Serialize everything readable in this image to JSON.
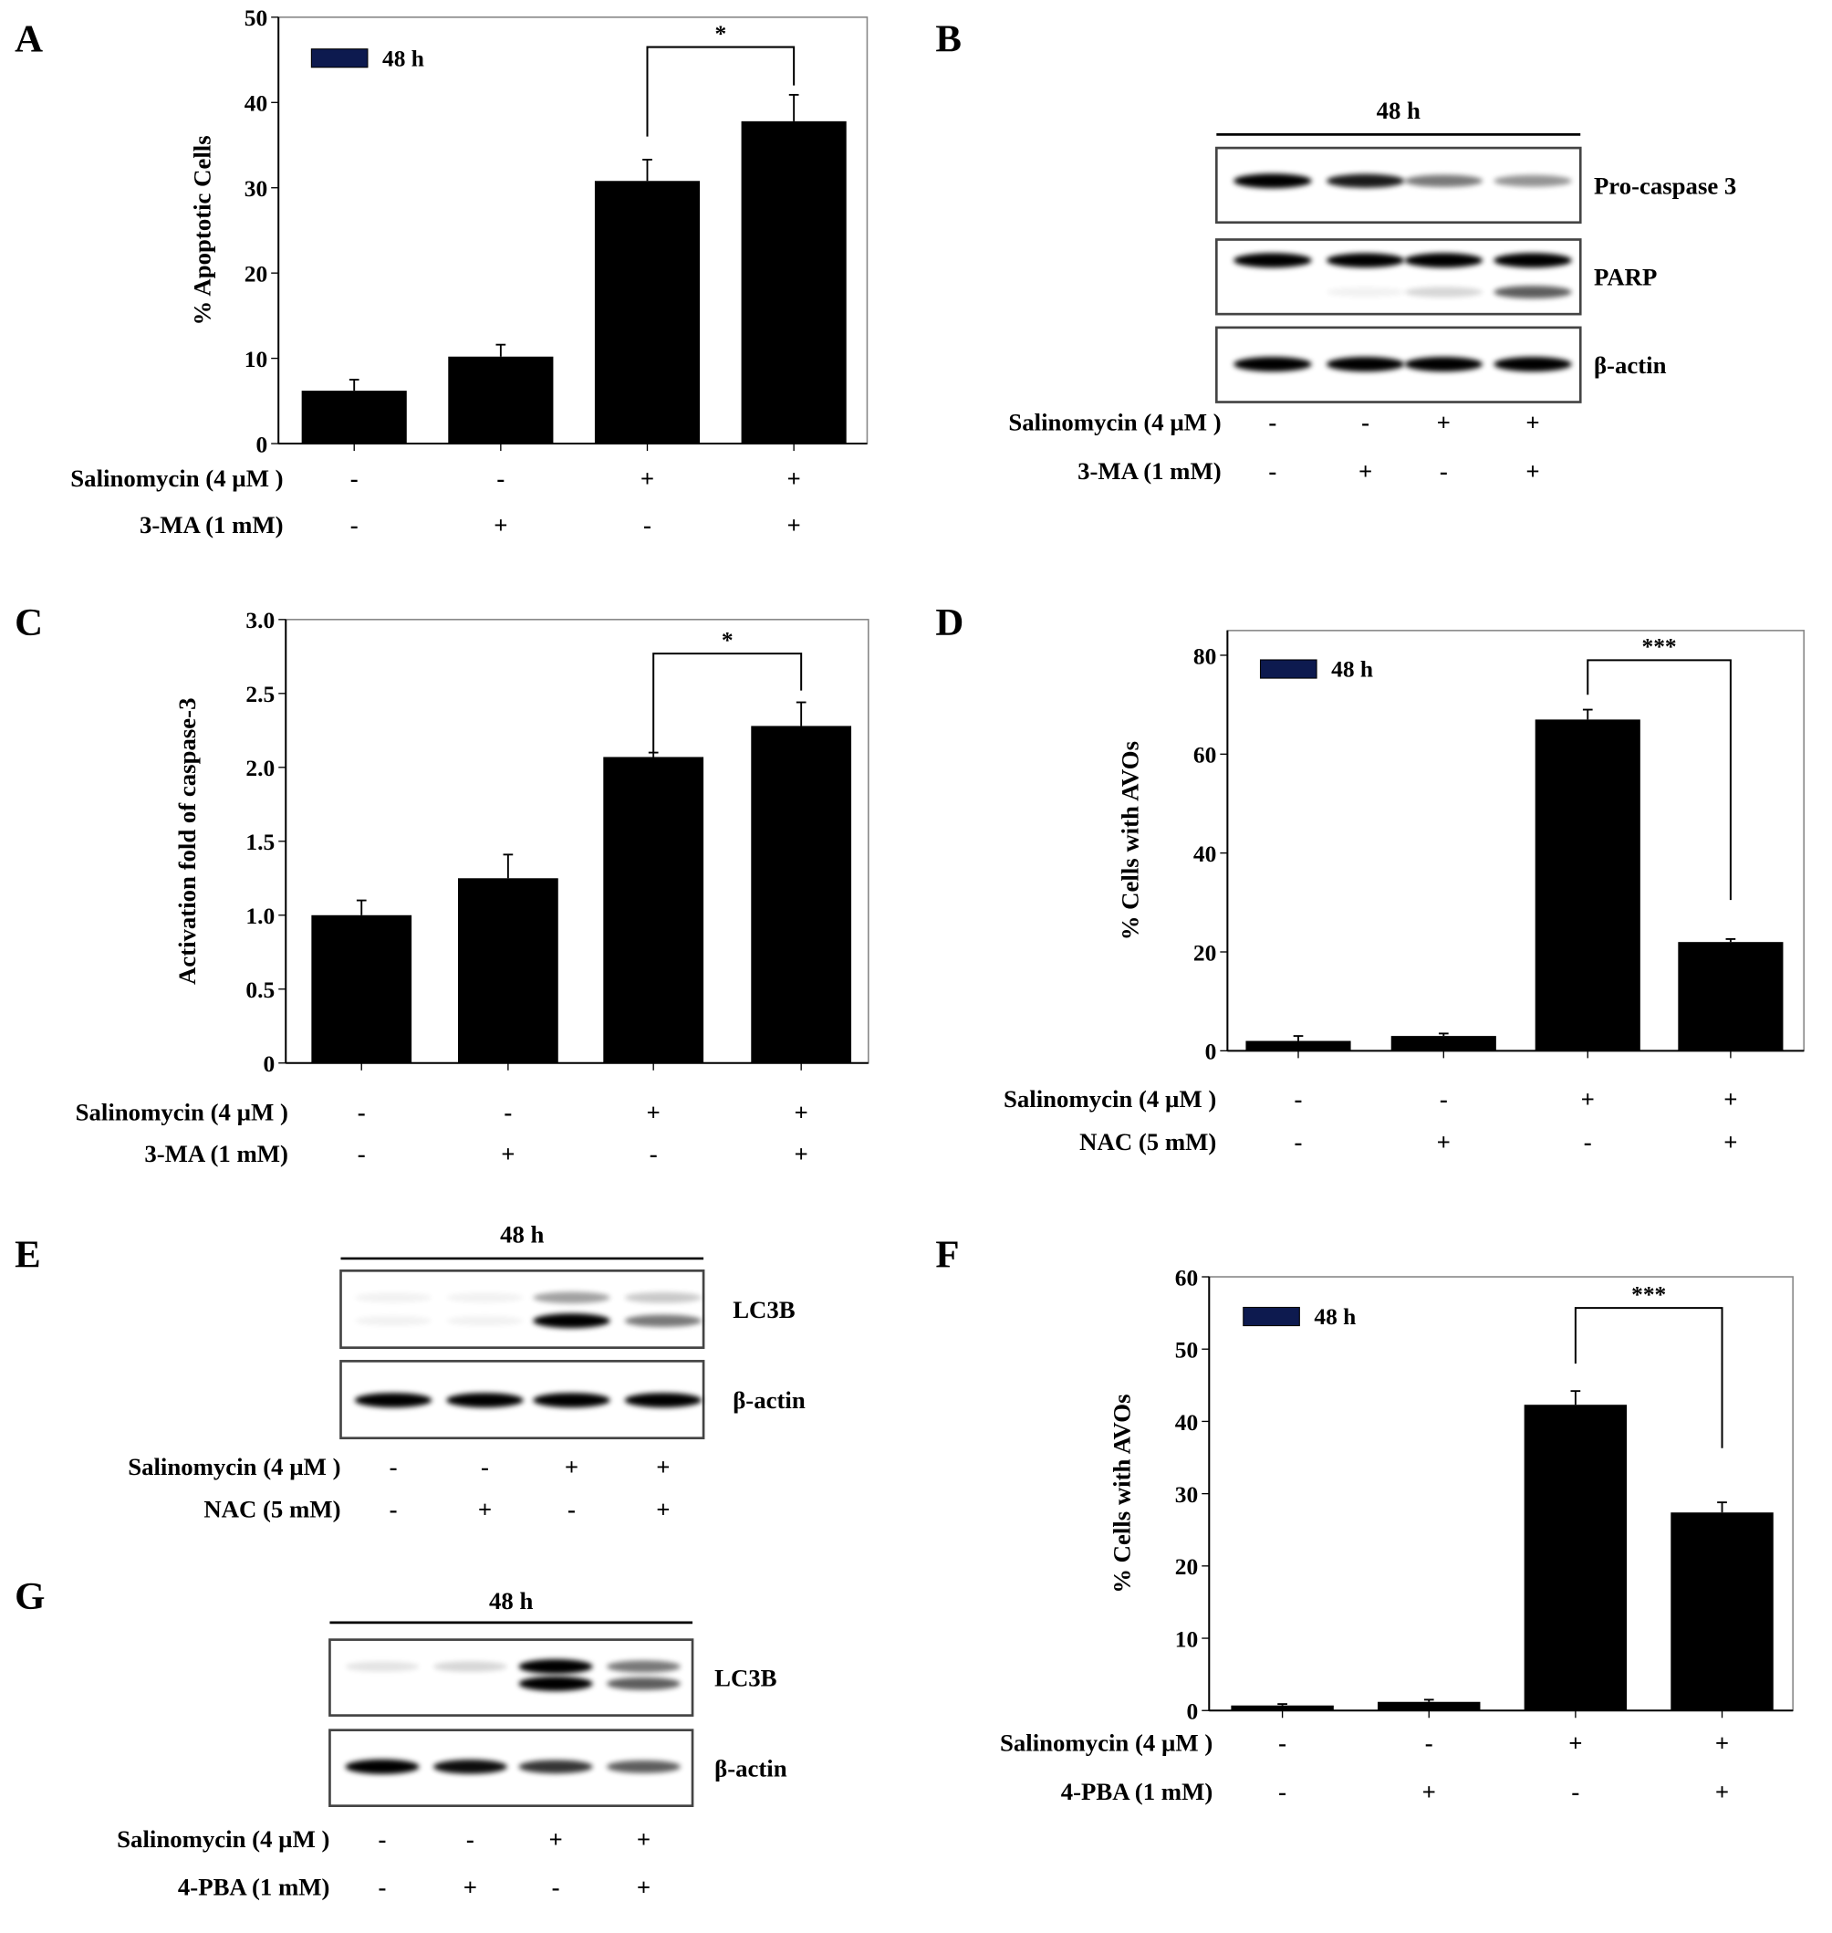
{
  "chart_data": [
    {
      "id": "A",
      "type": "bar",
      "panel_label": "A",
      "ylabel": "% Apoptotic  Cells",
      "ylim": [
        0,
        50
      ],
      "yticks": [
        0,
        10,
        20,
        30,
        40,
        50
      ],
      "legend": {
        "label": "48 h",
        "color": "#0d1a4f",
        "placement": "top-left"
      },
      "bar_color": "#000000",
      "values": [
        6.2,
        10.2,
        30.8,
        37.8
      ],
      "errors": [
        1.3,
        1.4,
        2.5,
        3.1
      ],
      "treatments": [
        {
          "label": "Salinomycin (4 µM )",
          "marks": [
            "-",
            "-",
            "+",
            "+"
          ]
        },
        {
          "label": "3-MA (1 mM)",
          "marks": [
            "-",
            "+",
            "-",
            "+"
          ]
        }
      ],
      "significance": {
        "between": [
          3,
          4
        ],
        "label": "*",
        "bracket_y": 46.5,
        "left_end": 36,
        "right_end": 42
      }
    },
    {
      "id": "C",
      "type": "bar",
      "panel_label": "C",
      "ylabel": "Activation fold of caspase-3",
      "ylim": [
        0,
        3.0
      ],
      "yticks": [
        "0",
        "0.5",
        "1.0",
        "1.5",
        "2.0",
        "2.5",
        "3.0"
      ],
      "bar_color": "#000000",
      "values": [
        1.0,
        1.25,
        2.07,
        2.28
      ],
      "errors": [
        0.1,
        0.16,
        0.03,
        0.16
      ],
      "treatments": [
        {
          "label": "Salinomycin (4 µM )",
          "marks": [
            "-",
            "-",
            "+",
            "+"
          ]
        },
        {
          "label": "3-MA (1 mM)",
          "marks": [
            "-",
            "+",
            "-",
            "+"
          ]
        }
      ],
      "significance": {
        "between": [
          3,
          4
        ],
        "label": "*",
        "bracket_y": 2.77,
        "left_end": 2.1,
        "right_end": 2.52
      }
    },
    {
      "id": "D",
      "type": "bar",
      "panel_label": "D",
      "ylabel": "% Cells  with AVOs",
      "ylim": [
        0,
        85
      ],
      "yticks": [
        0,
        20,
        40,
        60,
        80
      ],
      "legend": {
        "label": "48 h",
        "color": "#0d1a4f",
        "placement": "top-left"
      },
      "bar_color": "#000000",
      "values": [
        2,
        3,
        67,
        22
      ],
      "errors": [
        1,
        0.5,
        2,
        0.6
      ],
      "treatments": [
        {
          "label": "Salinomycin (4 µM )",
          "marks": [
            "-",
            "-",
            "+",
            "+"
          ]
        },
        {
          "label": "NAC (5 mM)",
          "marks": [
            "-",
            "+",
            "-",
            "+"
          ]
        }
      ],
      "significance": {
        "between": [
          3,
          4
        ],
        "label": "***",
        "bracket_y": 79,
        "left_end": 72,
        "right_end": 30.5
      }
    },
    {
      "id": "F",
      "type": "bar",
      "panel_label": "F",
      "ylabel": "% Cells  with AVOs",
      "ylim": [
        0,
        60
      ],
      "yticks": [
        0,
        10,
        20,
        30,
        40,
        50,
        60
      ],
      "legend": {
        "label": "48 h",
        "color": "#0d1a4f",
        "placement": "top-left"
      },
      "bar_color": "#000000",
      "values": [
        0.7,
        1.2,
        42.3,
        27.4
      ],
      "errors": [
        0.2,
        0.3,
        1.9,
        1.4
      ],
      "treatments": [
        {
          "label": "Salinomycin (4 µM )",
          "marks": [
            "-",
            "-",
            "+",
            "+"
          ]
        },
        {
          "label": "4-PBA (1 mM)",
          "marks": [
            "-",
            "+",
            "-",
            "+"
          ]
        }
      ],
      "significance": {
        "between": [
          3,
          4
        ],
        "label": "***",
        "bracket_y": 55.7,
        "left_end": 48,
        "right_end": 36.3
      }
    }
  ],
  "blots": [
    {
      "id": "B",
      "panel_label": "B",
      "header": "48 h",
      "rows": [
        {
          "label": "Pro-caspase 3",
          "bands": [
            [
              1,
              0.85,
              0.5,
              0.4
            ]
          ]
        },
        {
          "label": "PARP",
          "bands": [
            [
              1,
              0.95,
              1,
              1
            ],
            [
              0,
              0.05,
              0.15,
              0.6
            ]
          ]
        },
        {
          "label": "β-actin",
          "bands": [
            [
              1,
              1,
              1,
              1
            ]
          ]
        }
      ],
      "treatments": [
        {
          "label": "Salinomycin (4 µM )",
          "marks": [
            "-",
            "-",
            "+",
            "+"
          ]
        },
        {
          "label": "3-MA (1 mM)",
          "marks": [
            "-",
            "+",
            "-",
            "+"
          ]
        }
      ]
    },
    {
      "id": "E",
      "panel_label": "E",
      "header": "48 h",
      "rows": [
        {
          "label": "LC3B",
          "bands": [
            [
              0.05,
              0.05,
              0.35,
              0.2
            ],
            [
              0.05,
              0.05,
              1,
              0.5
            ]
          ]
        },
        {
          "label": "β-actin",
          "bands": [
            [
              1,
              1,
              1,
              1
            ]
          ]
        }
      ],
      "treatments": [
        {
          "label": "Salinomycin (4 µM )",
          "marks": [
            "-",
            "-",
            "+",
            "+"
          ]
        },
        {
          "label": "NAC (5 mM)",
          "marks": [
            "-",
            "+",
            "-",
            "+"
          ]
        }
      ]
    },
    {
      "id": "G",
      "panel_label": "G",
      "header": "48 h",
      "rows": [
        {
          "label": "LC3B",
          "bands": [
            [
              0.1,
              0.15,
              1,
              0.5
            ],
            [
              0,
              0,
              1,
              0.6
            ]
          ]
        },
        {
          "label": "β-actin",
          "bands": [
            [
              1,
              0.9,
              0.75,
              0.6
            ]
          ]
        }
      ],
      "treatments": [
        {
          "label": "Salinomycin (4 µM )",
          "marks": [
            "-",
            "-",
            "+",
            "+"
          ]
        },
        {
          "label": "4-PBA (1 mM)",
          "marks": [
            "-",
            "+",
            "-",
            "+"
          ]
        }
      ]
    }
  ]
}
